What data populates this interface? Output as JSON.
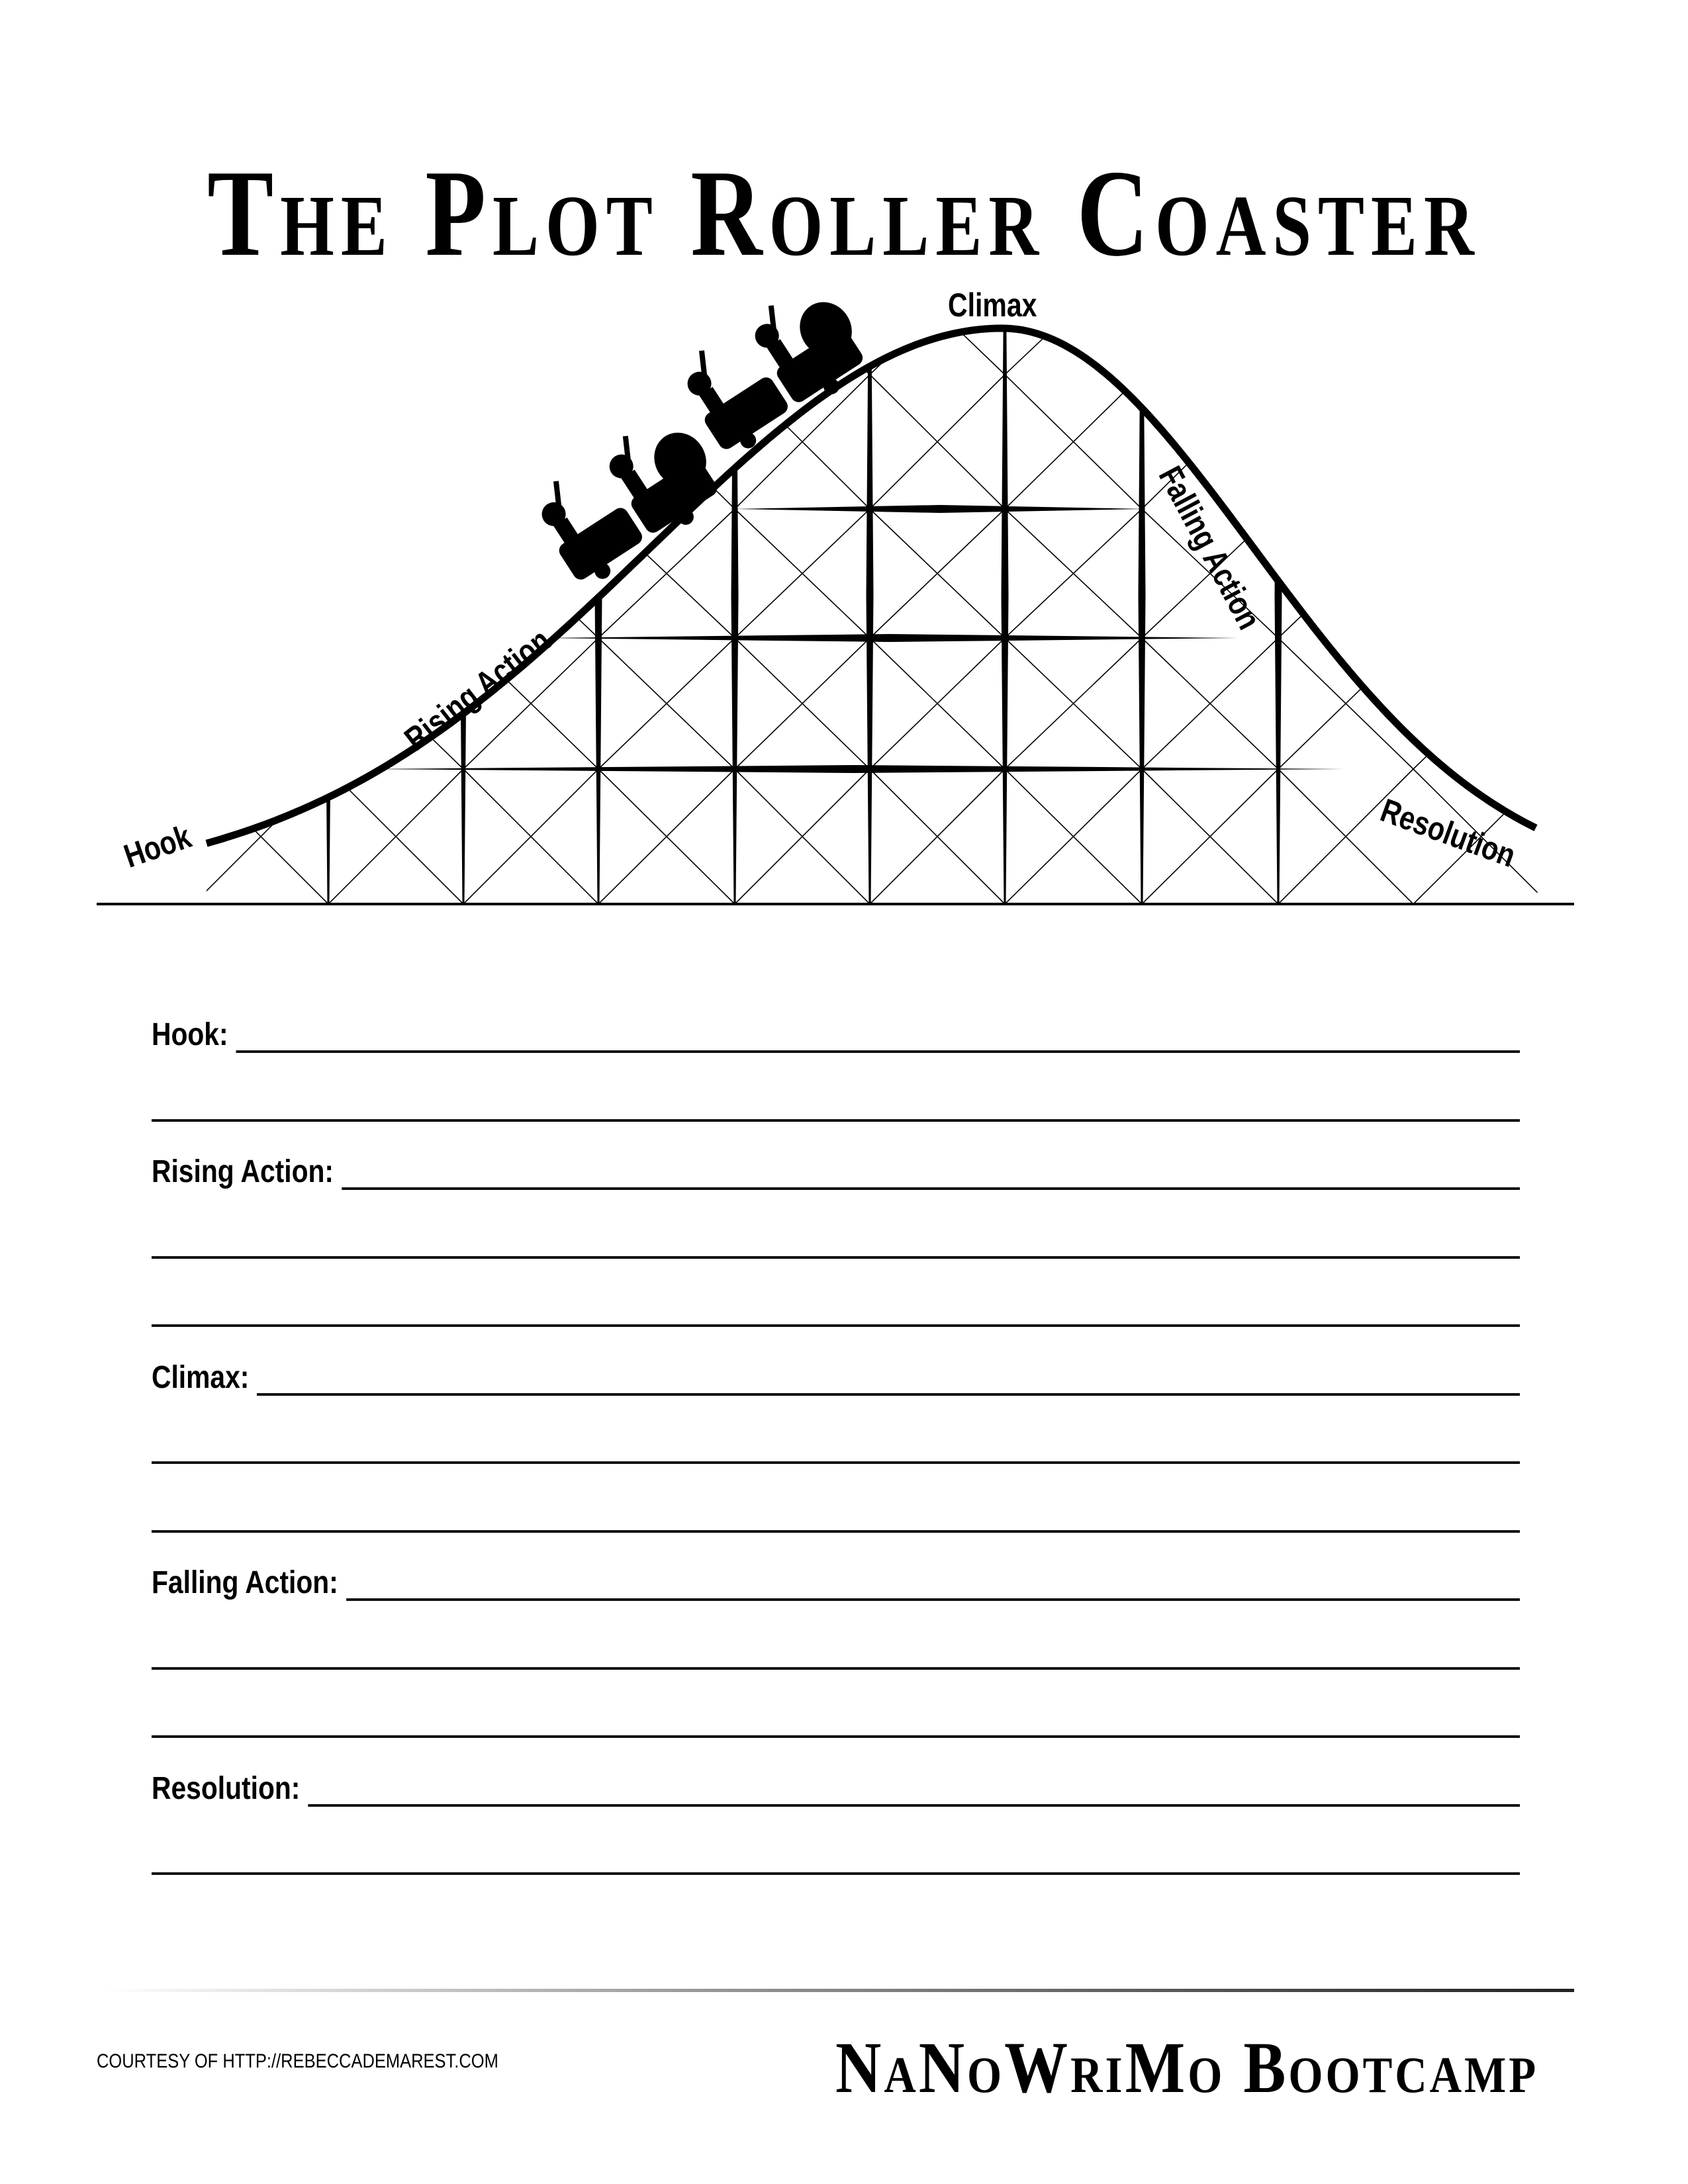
{
  "title": "The Plot Roller Coaster",
  "diagram": {
    "labels": {
      "hook": "Hook",
      "rising_action": "Rising Action",
      "climax": "Climax",
      "falling_action": "Falling Action",
      "resolution": "Resolution"
    }
  },
  "form": {
    "fields": [
      {
        "label": "Hook:",
        "lines": 2
      },
      {
        "label": "Rising Action:",
        "lines": 3
      },
      {
        "label": "Climax:",
        "lines": 3
      },
      {
        "label": "Falling Action:",
        "lines": 3
      },
      {
        "label": "Resolution:",
        "lines": 2
      }
    ]
  },
  "footer": {
    "courtesy": "COURTESY OF HTTP://REBECCADEMAREST.COM",
    "brand": "NaNoWriMo Bootcamp"
  }
}
